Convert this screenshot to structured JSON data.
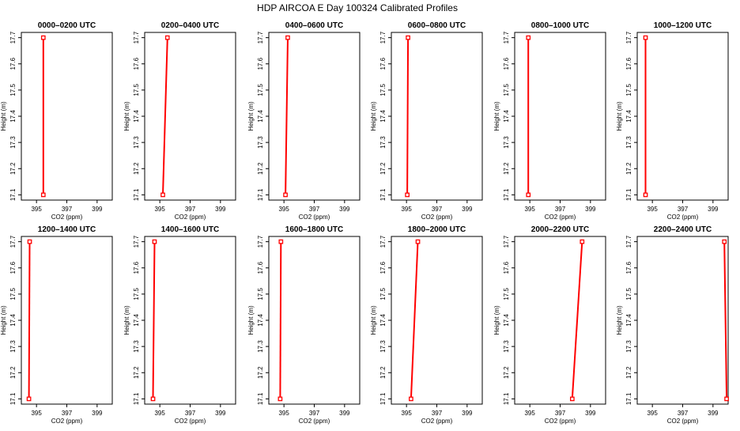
{
  "figure": {
    "title": "HDP AIRCOA E  Day 100324  Calibrated Profiles"
  },
  "chart_data": [
    {
      "type": "line",
      "title": "0000–0200 UTC",
      "xlabel": "CO2 (ppm)",
      "ylabel": "Height (m)",
      "xlim": [
        394,
        400
      ],
      "ylim": [
        17.08,
        17.72
      ],
      "xticks": [
        395,
        397,
        399
      ],
      "yticks": [
        17.1,
        17.2,
        17.3,
        17.4,
        17.5,
        17.6,
        17.7
      ],
      "series": [
        {
          "x": [
            395.45,
            395.45
          ],
          "y": [
            17.1,
            17.7
          ],
          "color": "#ff0000"
        }
      ]
    },
    {
      "type": "line",
      "title": "0200–0400 UTC",
      "xlabel": "CO2 (ppm)",
      "ylabel": "Height (m)",
      "xlim": [
        394,
        400
      ],
      "ylim": [
        17.08,
        17.72
      ],
      "xticks": [
        395,
        397,
        399
      ],
      "yticks": [
        17.1,
        17.2,
        17.3,
        17.4,
        17.5,
        17.6,
        17.7
      ],
      "series": [
        {
          "x": [
            395.2,
            395.5
          ],
          "y": [
            17.1,
            17.7
          ],
          "color": "#ff0000"
        }
      ]
    },
    {
      "type": "line",
      "title": "0400–0600 UTC",
      "xlabel": "CO2 (ppm)",
      "ylabel": "Height (m)",
      "xlim": [
        394,
        400
      ],
      "ylim": [
        17.08,
        17.72
      ],
      "xticks": [
        395,
        397,
        399
      ],
      "yticks": [
        17.1,
        17.2,
        17.3,
        17.4,
        17.5,
        17.6,
        17.7
      ],
      "series": [
        {
          "x": [
            395.1,
            395.25
          ],
          "y": [
            17.1,
            17.7
          ],
          "color": "#ff0000"
        }
      ]
    },
    {
      "type": "line",
      "title": "0600–0800 UTC",
      "xlabel": "CO2 (ppm)",
      "ylabel": "Height (m)",
      "xlim": [
        394,
        400
      ],
      "ylim": [
        17.08,
        17.72
      ],
      "xticks": [
        395,
        397,
        399
      ],
      "yticks": [
        17.1,
        17.2,
        17.3,
        17.4,
        17.5,
        17.6,
        17.7
      ],
      "series": [
        {
          "x": [
            395.05,
            395.1
          ],
          "y": [
            17.1,
            17.7
          ],
          "color": "#ff0000"
        }
      ]
    },
    {
      "type": "line",
      "title": "0800–1000 UTC",
      "xlabel": "CO2 (ppm)",
      "ylabel": "Height (m)",
      "xlim": [
        394,
        400
      ],
      "ylim": [
        17.08,
        17.72
      ],
      "xticks": [
        395,
        397,
        399
      ],
      "yticks": [
        17.1,
        17.2,
        17.3,
        17.4,
        17.5,
        17.6,
        17.7
      ],
      "series": [
        {
          "x": [
            394.9,
            394.9
          ],
          "y": [
            17.1,
            17.7
          ],
          "color": "#ff0000"
        }
      ]
    },
    {
      "type": "line",
      "title": "1000–1200 UTC",
      "xlabel": "CO2 (ppm)",
      "ylabel": "Height (m)",
      "xlim": [
        394,
        400
      ],
      "ylim": [
        17.08,
        17.72
      ],
      "xticks": [
        395,
        397,
        399
      ],
      "yticks": [
        17.1,
        17.2,
        17.3,
        17.4,
        17.5,
        17.6,
        17.7
      ],
      "series": [
        {
          "x": [
            394.55,
            394.55
          ],
          "y": [
            17.1,
            17.7
          ],
          "color": "#ff0000"
        }
      ]
    },
    {
      "type": "line",
      "title": "1200–1400 UTC",
      "xlabel": "CO2 (ppm)",
      "ylabel": "Height (m)",
      "xlim": [
        394,
        400
      ],
      "ylim": [
        17.08,
        17.72
      ],
      "xticks": [
        395,
        397,
        399
      ],
      "yticks": [
        17.1,
        17.2,
        17.3,
        17.4,
        17.5,
        17.6,
        17.7
      ],
      "series": [
        {
          "x": [
            394.5,
            394.55
          ],
          "y": [
            17.1,
            17.7
          ],
          "color": "#ff0000"
        }
      ]
    },
    {
      "type": "line",
      "title": "1400–1600 UTC",
      "xlabel": "CO2 (ppm)",
      "ylabel": "Height (m)",
      "xlim": [
        394,
        400
      ],
      "ylim": [
        17.08,
        17.72
      ],
      "xticks": [
        395,
        397,
        399
      ],
      "yticks": [
        17.1,
        17.2,
        17.3,
        17.4,
        17.5,
        17.6,
        17.7
      ],
      "series": [
        {
          "x": [
            394.55,
            394.65
          ],
          "y": [
            17.1,
            17.7
          ],
          "color": "#ff0000"
        }
      ]
    },
    {
      "type": "line",
      "title": "1600–1800 UTC",
      "xlabel": "CO2 (ppm)",
      "ylabel": "Height (m)",
      "xlim": [
        394,
        400
      ],
      "ylim": [
        17.08,
        17.72
      ],
      "xticks": [
        395,
        397,
        399
      ],
      "yticks": [
        17.1,
        17.2,
        17.3,
        17.4,
        17.5,
        17.6,
        17.7
      ],
      "series": [
        {
          "x": [
            394.75,
            394.8
          ],
          "y": [
            17.1,
            17.7
          ],
          "color": "#ff0000"
        }
      ]
    },
    {
      "type": "line",
      "title": "1800–2000 UTC",
      "xlabel": "CO2 (ppm)",
      "ylabel": "Height (m)",
      "xlim": [
        394,
        400
      ],
      "ylim": [
        17.08,
        17.72
      ],
      "xticks": [
        395,
        397,
        399
      ],
      "yticks": [
        17.1,
        17.2,
        17.3,
        17.4,
        17.5,
        17.6,
        17.7
      ],
      "series": [
        {
          "x": [
            395.3,
            395.75
          ],
          "y": [
            17.1,
            17.7
          ],
          "color": "#ff0000"
        }
      ]
    },
    {
      "type": "line",
      "title": "2000–2200 UTC",
      "xlabel": "CO2 (ppm)",
      "ylabel": "Height (m)",
      "xlim": [
        394,
        400
      ],
      "ylim": [
        17.08,
        17.72
      ],
      "xticks": [
        395,
        397,
        399
      ],
      "yticks": [
        17.1,
        17.2,
        17.3,
        17.4,
        17.5,
        17.6,
        17.7
      ],
      "series": [
        {
          "x": [
            397.8,
            398.45
          ],
          "y": [
            17.1,
            17.7
          ],
          "color": "#ff0000"
        }
      ]
    },
    {
      "type": "line",
      "title": "2200–2400 UTC",
      "xlabel": "CO2 (ppm)",
      "ylabel": "Height (m)",
      "xlim": [
        394,
        400
      ],
      "ylim": [
        17.08,
        17.72
      ],
      "xticks": [
        395,
        397,
        399
      ],
      "yticks": [
        17.1,
        17.2,
        17.3,
        17.4,
        17.5,
        17.6,
        17.7
      ],
      "series": [
        {
          "x": [
            399.9,
            399.75
          ],
          "y": [
            17.1,
            17.7
          ],
          "color": "#ff0000"
        }
      ]
    }
  ]
}
